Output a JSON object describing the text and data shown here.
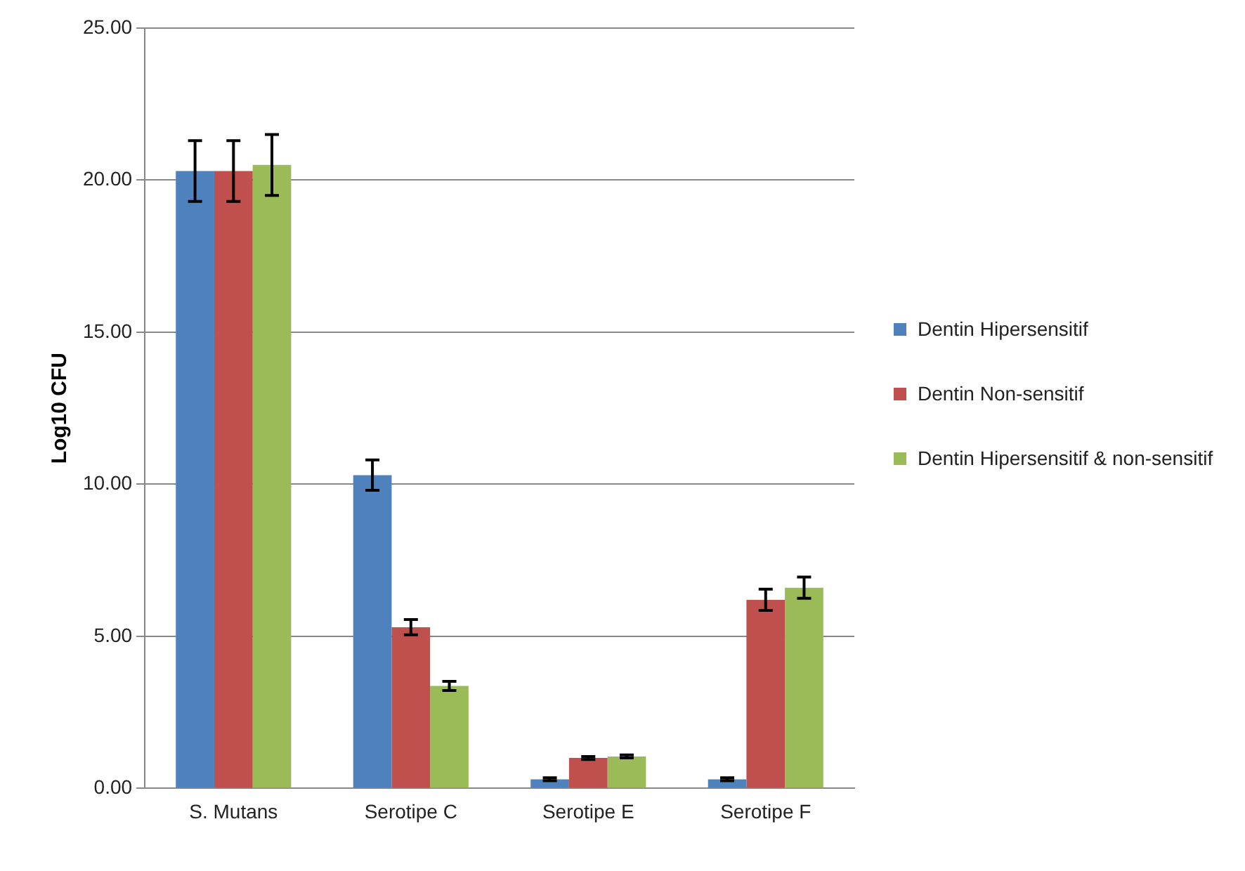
{
  "chart_data": {
    "type": "bar",
    "ylabel": "Log10 CFU",
    "categories": [
      "S. Mutans",
      "Serotipe C",
      "Serotipe E",
      "Serotipe F"
    ],
    "series": [
      {
        "name": "Dentin Hipersensitif",
        "color": "#4f81bd",
        "values": [
          20.3,
          10.3,
          0.3,
          0.3
        ],
        "errors": [
          1.0,
          0.5,
          0.05,
          0.05
        ]
      },
      {
        "name": "Dentin Non-sensitif",
        "color": "#c0504d",
        "values": [
          20.3,
          5.3,
          1.0,
          6.2
        ],
        "errors": [
          1.0,
          0.25,
          0.05,
          0.35
        ]
      },
      {
        "name": "Dentin Hipersensitif & non-sensitif",
        "color": "#9bbb59",
        "values": [
          20.5,
          3.37,
          1.05,
          6.6
        ],
        "errors": [
          1.0,
          0.15,
          0.05,
          0.35
        ]
      }
    ],
    "ylim": [
      0,
      25
    ],
    "yticks": [
      {
        "value": 0,
        "label": "0.00"
      },
      {
        "value": 5,
        "label": "5.00"
      },
      {
        "value": 10,
        "label": "10.00"
      },
      {
        "value": 15,
        "label": "15.00"
      },
      {
        "value": 20,
        "label": "20.00"
      },
      {
        "value": 25,
        "label": "25.00"
      }
    ],
    "grid": "y",
    "legend": "right"
  }
}
